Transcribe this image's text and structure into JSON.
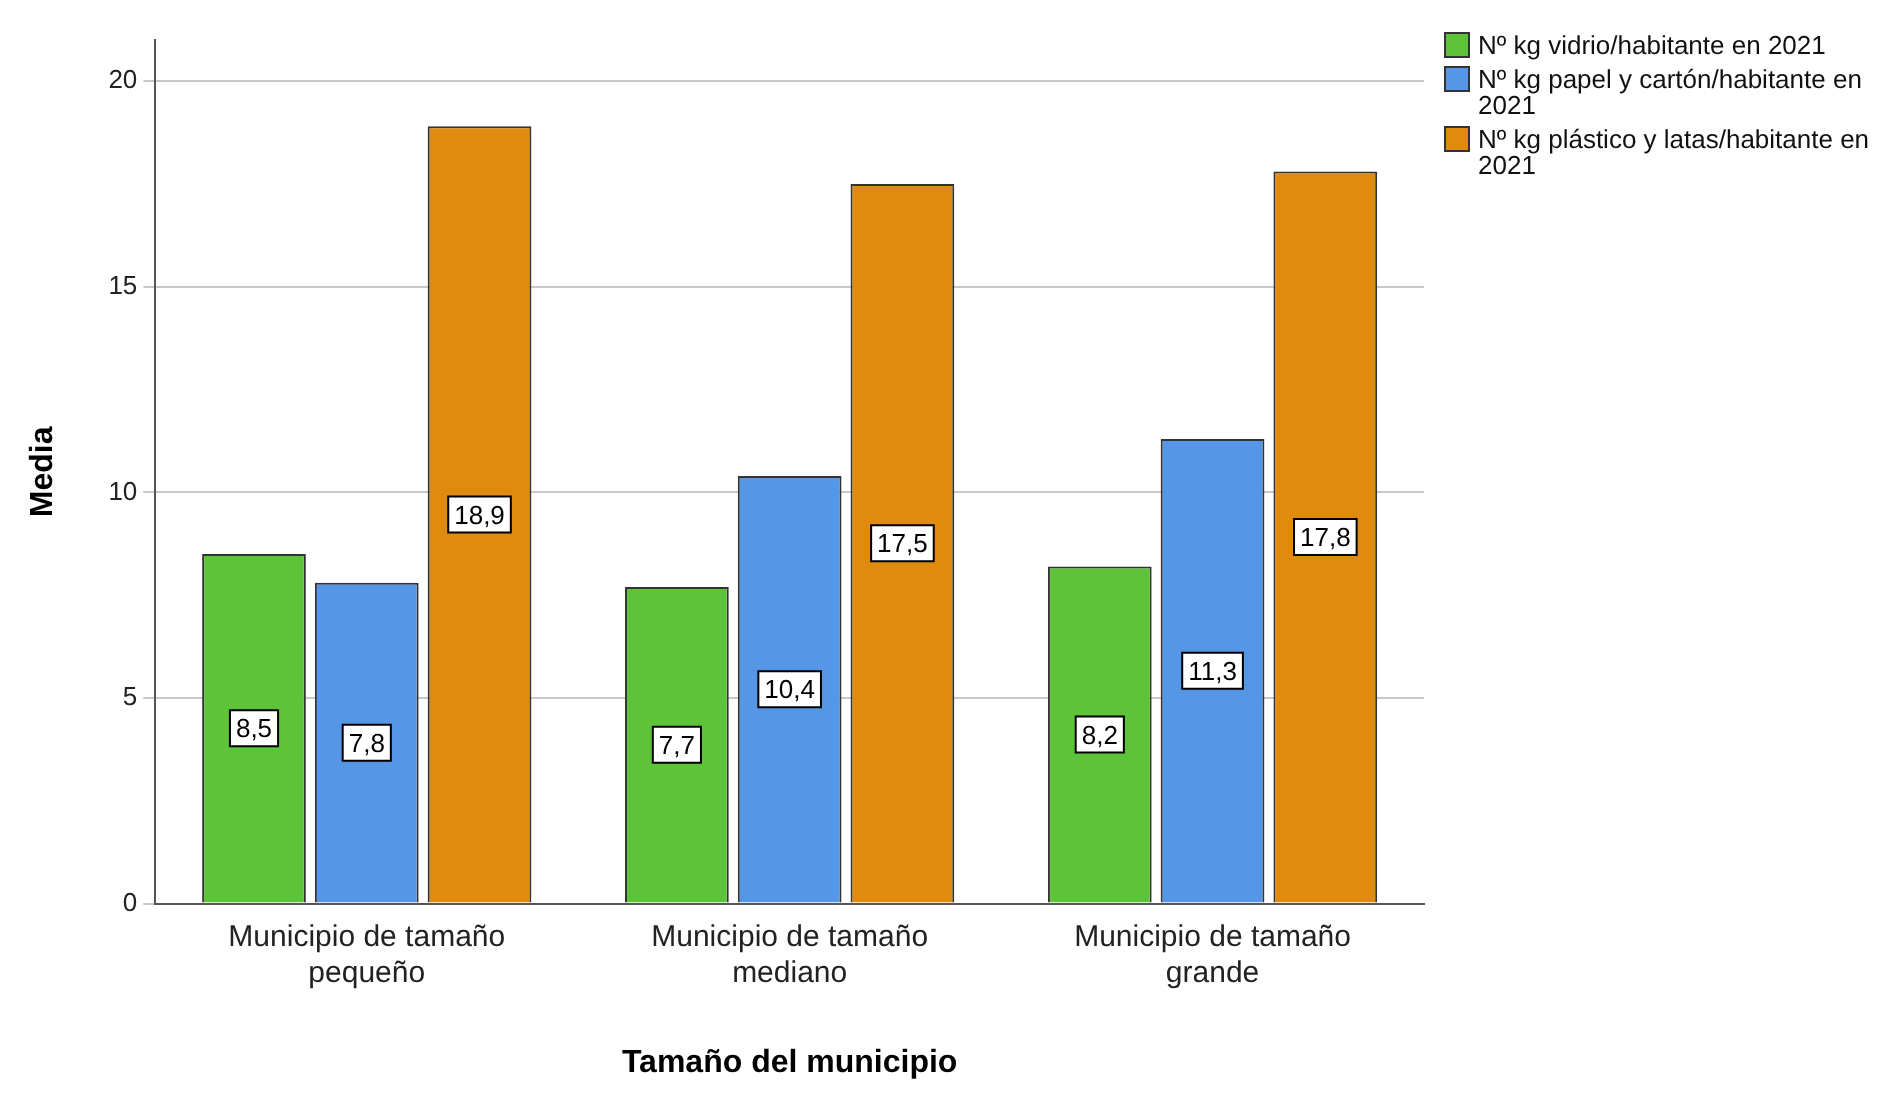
{
  "chart_data": {
    "type": "bar",
    "xlabel": "Tamaño del municipio",
    "ylabel": "Media",
    "categories": [
      "Municipio de tamaño pequeño",
      "Municipio de tamaño mediano",
      "Municipio de tamaño grande"
    ],
    "series": [
      {
        "name": "Nº kg vidrio/habitante en 2021",
        "color": "#5dc43a",
        "values": [
          8.5,
          7.7,
          8.2
        ],
        "value_labels": [
          "8,5",
          "7,7",
          "8,2"
        ]
      },
      {
        "name": "Nº kg papel y cartón/habitante en 2021",
        "color": "#5596e6",
        "values": [
          7.8,
          10.4,
          11.3
        ],
        "value_labels": [
          "7,8",
          "10,4",
          "11,3"
        ]
      },
      {
        "name": "Nº kg plástico y latas/habitante en 2021",
        "color": "#e08a10",
        "values": [
          18.9,
          17.5,
          17.8
        ],
        "value_labels": [
          "18,9",
          "17,5",
          "17,8"
        ]
      }
    ],
    "ylim": [
      0,
      21
    ],
    "yticks": [
      0,
      5,
      10,
      15,
      20
    ],
    "grid": "y",
    "legend": "top right"
  }
}
